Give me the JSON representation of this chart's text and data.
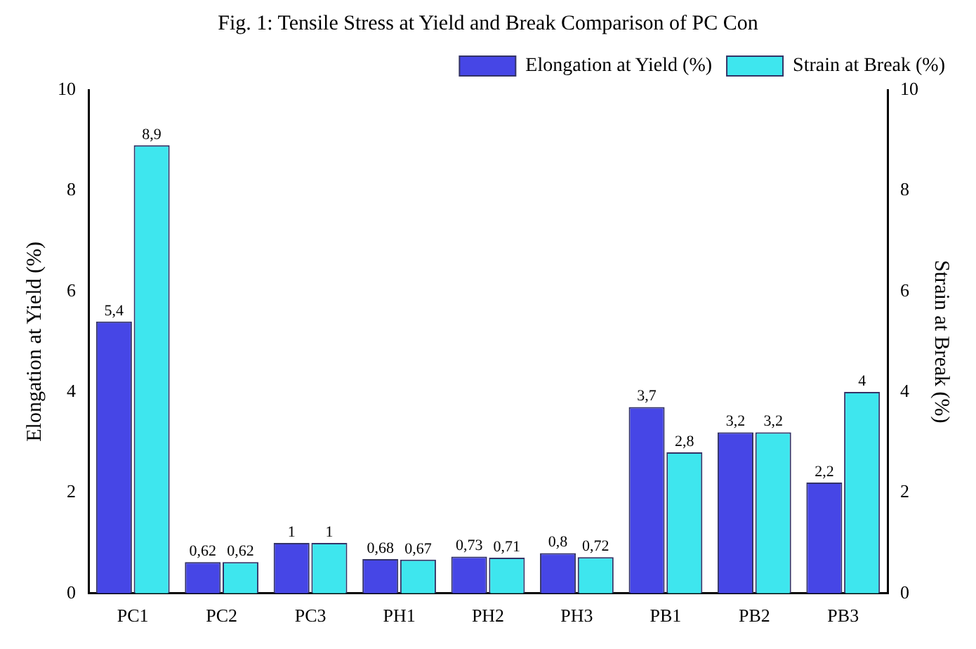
{
  "chart_data": {
    "type": "bar",
    "title": "Fig. 1: Tensile Stress at Yield and Break Comparison of PC Con",
    "categories": [
      "PC1",
      "PC2",
      "PC3",
      "PH1",
      "PH2",
      "PH3",
      "PB1",
      "PB2",
      "PB3"
    ],
    "series": [
      {
        "name": "Elongation at Yield (%)",
        "color": "#4646e6",
        "values": [
          5.4,
          0.62,
          1,
          0.68,
          0.73,
          0.8,
          3.7,
          3.2,
          2.2
        ],
        "value_labels": [
          "5,4",
          "0,62",
          "1",
          "0,68",
          "0,73",
          "0,8",
          "3,7",
          "3,2",
          "2,2"
        ]
      },
      {
        "name": "Strain at Break (%)",
        "color": "#3ee6ee",
        "axis": "y2",
        "values": [
          8.9,
          0.62,
          1,
          0.67,
          0.71,
          0.72,
          2.8,
          3.2,
          4
        ],
        "value_labels": [
          "8,9",
          "0,62",
          "1",
          "0,67",
          "0,71",
          "0,72",
          "2,8",
          "3,2",
          "4"
        ]
      }
    ],
    "ylabel": "Elongation at Yield (%)",
    "y2label": "Strain at Break (%)",
    "ylim": [
      0,
      10
    ],
    "yticks": [
      0,
      2,
      4,
      6,
      8,
      10
    ],
    "y2lim": [
      0,
      10
    ],
    "y2ticks": [
      0,
      2,
      4,
      6,
      8,
      10
    ],
    "grid": false,
    "legend": "top right"
  }
}
